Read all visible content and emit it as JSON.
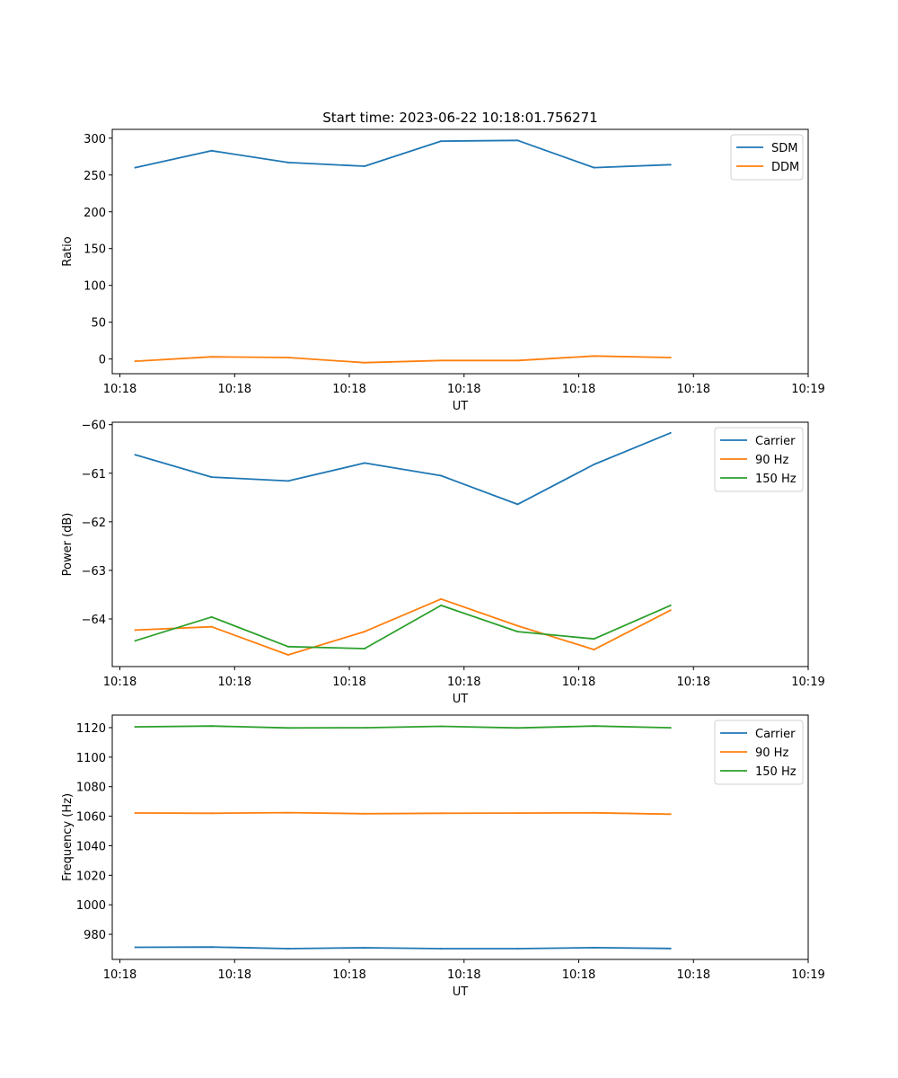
{
  "figure_title": "Start time: 2023-06-22 10:18:01.756271",
  "chart_data": [
    {
      "type": "line",
      "title": "Start time: 2023-06-22 10:18:01.756271",
      "xlabel": "UT",
      "ylabel": "Ratio",
      "x": [
        1,
        2,
        3,
        4,
        5,
        6,
        7,
        8
      ],
      "x_tick_values": [
        0.8,
        2.3,
        3.8,
        5.3,
        6.8,
        8.3,
        9.8
      ],
      "x_tick_labels": [
        "10:18",
        "10:18",
        "10:18",
        "10:18",
        "10:18",
        "10:18",
        "10:19"
      ],
      "xlim": [
        0.7,
        9.8
      ],
      "ylim": [
        -20,
        312
      ],
      "y_ticks": [
        0,
        50,
        100,
        150,
        200,
        250,
        300
      ],
      "legend_position": "top-right",
      "grid": false,
      "series": [
        {
          "name": "SDM",
          "color": "#1f77b4",
          "values": [
            260,
            283,
            267,
            262,
            296,
            297,
            260,
            264
          ]
        },
        {
          "name": "DDM",
          "color": "#ff7f0e",
          "values": [
            -3,
            3,
            2,
            -5,
            -2,
            -2,
            4,
            2
          ]
        }
      ]
    },
    {
      "type": "line",
      "title": "",
      "xlabel": "UT",
      "ylabel": "Power (dB)",
      "x": [
        1,
        2,
        3,
        4,
        5,
        6,
        7,
        8
      ],
      "x_tick_values": [
        0.8,
        2.3,
        3.8,
        5.3,
        6.8,
        8.3,
        9.8
      ],
      "x_tick_labels": [
        "10:18",
        "10:18",
        "10:18",
        "10:18",
        "10:18",
        "10:18",
        "10:19"
      ],
      "xlim": [
        0.7,
        9.8
      ],
      "ylim": [
        -64.98,
        -59.95
      ],
      "y_ticks": [
        -64,
        -63,
        -62,
        -61,
        -60
      ],
      "legend_position": "top-right",
      "grid": false,
      "series": [
        {
          "name": "Carrier",
          "color": "#1f77b4",
          "values": [
            -60.62,
            -61.08,
            -61.16,
            -60.79,
            -61.05,
            -61.64,
            -60.82,
            -60.17
          ]
        },
        {
          "name": "90 Hz",
          "color": "#ff7f0e",
          "values": [
            -64.23,
            -64.16,
            -64.74,
            -64.26,
            -63.59,
            -64.14,
            -64.63,
            -63.82
          ]
        },
        {
          "name": "150 Hz",
          "color": "#2ca02c",
          "values": [
            -64.45,
            -63.96,
            -64.57,
            -64.61,
            -63.72,
            -64.26,
            -64.41,
            -63.72
          ]
        }
      ]
    },
    {
      "type": "line",
      "title": "",
      "xlabel": "UT",
      "ylabel": "Frequency (Hz)",
      "x": [
        1,
        2,
        3,
        4,
        5,
        6,
        7,
        8
      ],
      "x_tick_values": [
        0.8,
        2.3,
        3.8,
        5.3,
        6.8,
        8.3,
        9.8
      ],
      "x_tick_labels": [
        "10:18",
        "10:18",
        "10:18",
        "10:18",
        "10:18",
        "10:18",
        "10:19"
      ],
      "xlim": [
        0.7,
        9.8
      ],
      "ylim": [
        963,
        1128.5
      ],
      "y_ticks": [
        980,
        1000,
        1020,
        1040,
        1060,
        1080,
        1100,
        1120
      ],
      "legend_position": "top-right",
      "grid": false,
      "series": [
        {
          "name": "Carrier",
          "color": "#1f77b4",
          "values": [
            971.2,
            971.4,
            970.3,
            970.9,
            970.3,
            970.3,
            971.0,
            970.4
          ]
        },
        {
          "name": "90 Hz",
          "color": "#ff7f0e",
          "values": [
            1062.2,
            1062.0,
            1062.4,
            1061.7,
            1062.0,
            1062.1,
            1062.3,
            1061.4
          ]
        },
        {
          "name": "150 Hz",
          "color": "#2ca02c",
          "values": [
            1120.5,
            1121.1,
            1119.8,
            1119.9,
            1120.9,
            1119.8,
            1121.1,
            1119.9
          ]
        }
      ]
    }
  ]
}
